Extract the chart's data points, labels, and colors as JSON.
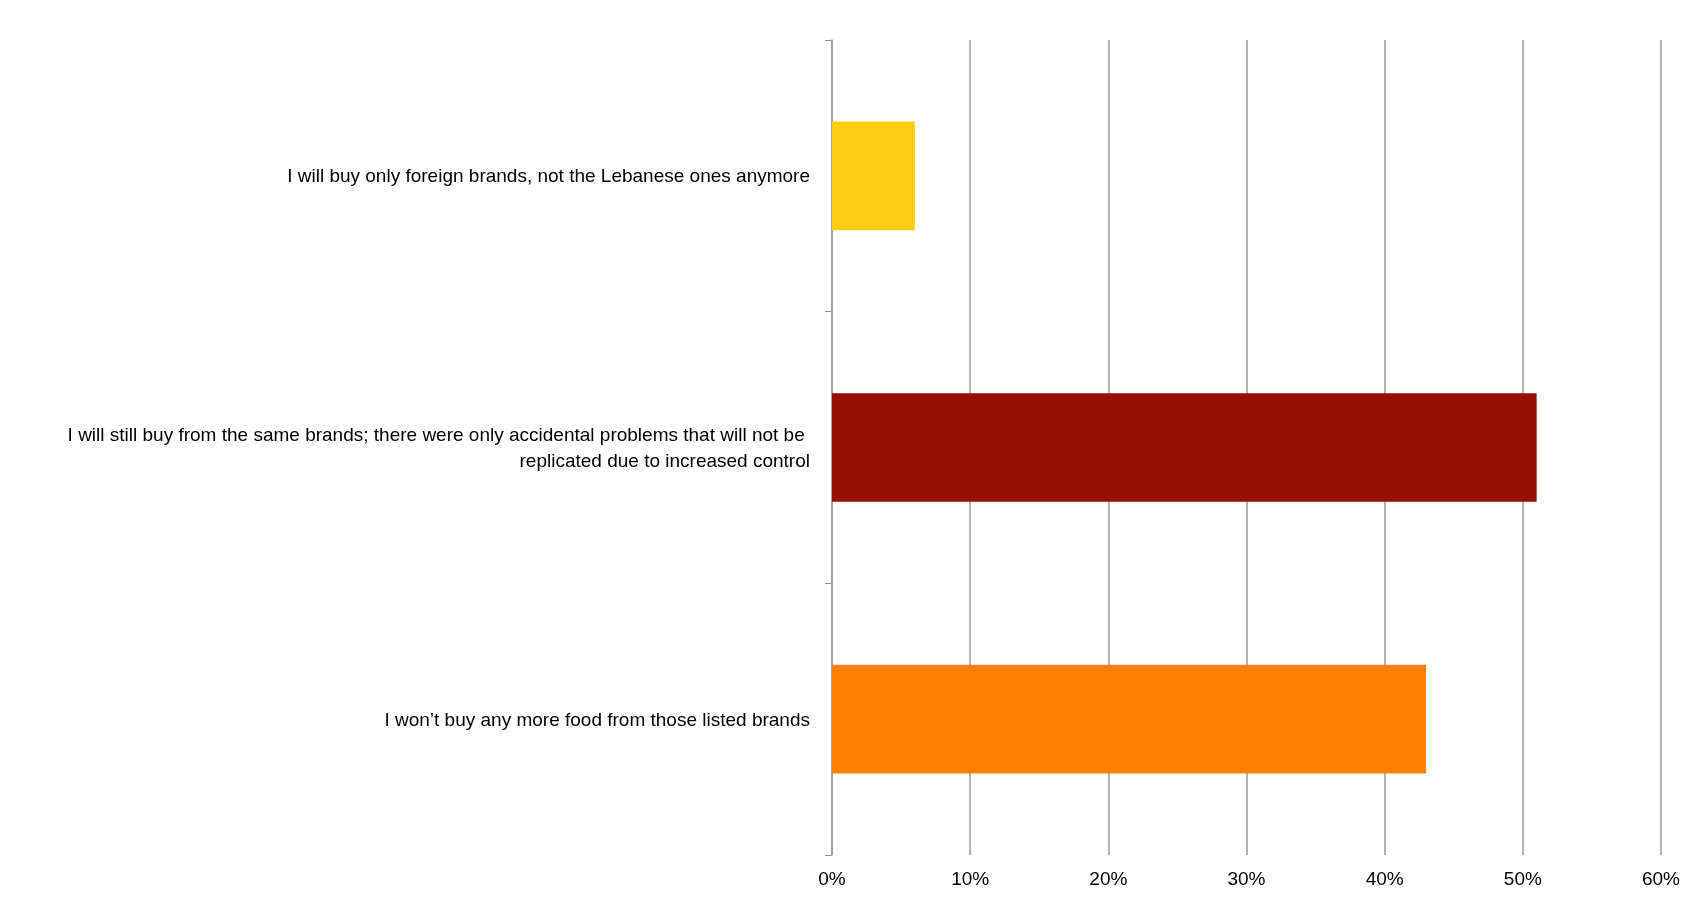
{
  "chart_data": {
    "type": "bar",
    "orientation": "horizontal",
    "categories": [
      "I will buy only foreign brands, not the Lebanese ones anymore",
      "I will still buy from the same brands; there were only accidental problems that will not be replicated due to increased control",
      "I won’t buy any more food from those listed brands"
    ],
    "values": [
      6,
      51,
      43
    ],
    "colors": [
      "#ffcc14",
      "#941100",
      "#ff7f00"
    ],
    "xlim": [
      0,
      60
    ],
    "xticks": [
      {
        "value": 0,
        "label": "0%"
      },
      {
        "value": 10,
        "label": "10%"
      },
      {
        "value": 20,
        "label": "20%"
      },
      {
        "value": 30,
        "label": "30%"
      },
      {
        "value": 40,
        "label": "40%"
      },
      {
        "value": 50,
        "label": "50%"
      },
      {
        "value": 60,
        "label": "60%"
      }
    ],
    "grid": "x"
  }
}
